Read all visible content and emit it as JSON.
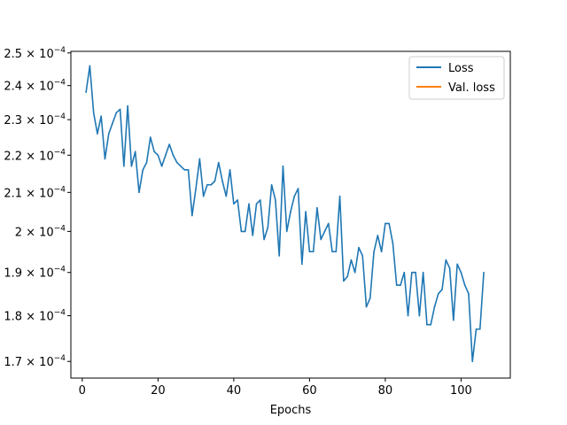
{
  "chart_data": {
    "type": "line",
    "title": "",
    "xlabel": "Epochs",
    "ylabel": "",
    "y_scale": "log",
    "grid": false,
    "legend_placement": "top-right",
    "xlim": [
      -3,
      113
    ],
    "ylim": [
      0.0001665,
      0.0002505
    ],
    "x_ticks": [
      0,
      20,
      40,
      60,
      80,
      100
    ],
    "x_tick_labels": [
      "0",
      "20",
      "40",
      "60",
      "80",
      "100"
    ],
    "y_ticks": [
      0.00017,
      0.00018,
      0.00019,
      0.0002,
      0.00021,
      0.00022,
      0.00023,
      0.00024,
      0.00025
    ],
    "y_tick_mantissas": [
      "1.7",
      "1.8",
      "1.9",
      "2",
      "2.1",
      "2.2",
      "2.3",
      "2.4",
      "2.5"
    ],
    "y_tick_base": "× 10",
    "y_tick_exponent": "−4",
    "series": [
      {
        "name": "Loss",
        "color": "#1f77b4",
        "x": [
          1,
          2,
          3,
          4,
          5,
          6,
          7,
          8,
          9,
          10,
          11,
          12,
          13,
          14,
          15,
          16,
          17,
          18,
          19,
          20,
          21,
          22,
          23,
          24,
          25,
          26,
          27,
          28,
          29,
          30,
          31,
          32,
          33,
          34,
          35,
          36,
          37,
          38,
          39,
          40,
          41,
          42,
          43,
          44,
          45,
          46,
          47,
          48,
          49,
          50,
          51,
          52,
          53,
          54,
          55,
          56,
          57,
          58,
          59,
          60,
          61,
          62,
          63,
          64,
          65,
          66,
          67,
          68,
          69,
          70,
          71,
          72,
          73,
          74,
          75,
          76,
          77,
          78,
          79,
          80,
          81,
          82,
          83,
          84,
          85,
          86,
          87,
          88,
          89,
          90,
          91,
          92,
          93,
          94,
          95,
          96,
          97,
          98,
          99,
          100,
          101,
          102,
          103,
          104,
          105,
          106
        ],
        "values": [
          0.000238,
          0.000246,
          0.000232,
          0.000226,
          0.000231,
          0.000219,
          0.000226,
          0.000229,
          0.000232,
          0.000233,
          0.000217,
          0.000234,
          0.000217,
          0.000221,
          0.00021,
          0.000216,
          0.000218,
          0.000225,
          0.000221,
          0.00022,
          0.000217,
          0.00022,
          0.000223,
          0.00022,
          0.000218,
          0.000217,
          0.000216,
          0.000216,
          0.000204,
          0.000211,
          0.000219,
          0.000209,
          0.000212,
          0.000212,
          0.000213,
          0.000218,
          0.000213,
          0.000209,
          0.000216,
          0.000207,
          0.000208,
          0.0002,
          0.0002,
          0.000207,
          0.000199,
          0.000207,
          0.000208,
          0.000198,
          0.000201,
          0.000212,
          0.000208,
          0.000194,
          0.000217,
          0.0002,
          0.000205,
          0.000209,
          0.000211,
          0.000192,
          0.000205,
          0.000195,
          0.000195,
          0.000206,
          0.000198,
          0.0002,
          0.000202,
          0.000195,
          0.000195,
          0.000209,
          0.000188,
          0.000189,
          0.000193,
          0.00019,
          0.000196,
          0.000194,
          0.000182,
          0.000184,
          0.000195,
          0.000199,
          0.000195,
          0.000202,
          0.000202,
          0.000197,
          0.000187,
          0.000187,
          0.00019,
          0.00018,
          0.00019,
          0.00019,
          0.00018,
          0.00019,
          0.000178,
          0.000178,
          0.000182,
          0.000185,
          0.000186,
          0.000193,
          0.000191,
          0.000179,
          0.000192,
          0.00019,
          0.000187,
          0.000185,
          0.00017,
          0.000177,
          0.000177,
          0.00019
        ]
      },
      {
        "name": "Val. loss",
        "color": "#ff7f0e",
        "x": [],
        "values": []
      }
    ]
  }
}
